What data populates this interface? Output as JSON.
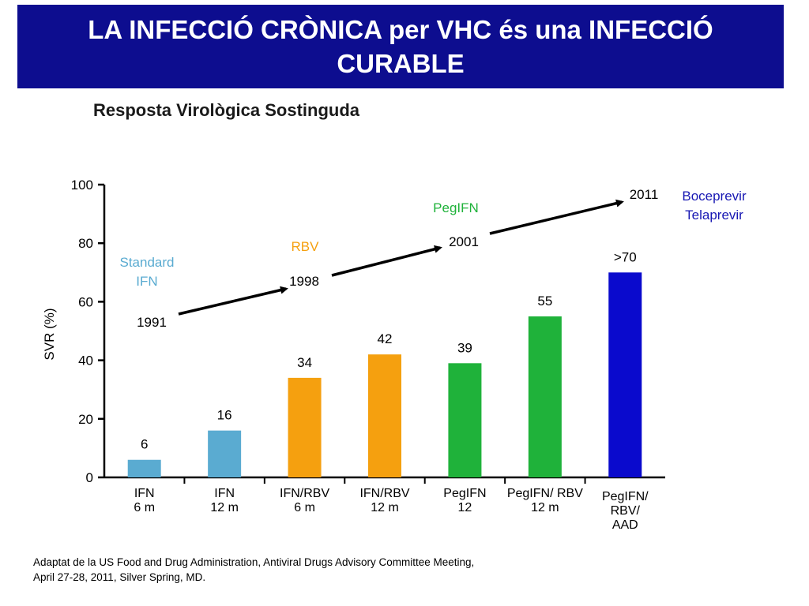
{
  "header": {
    "title": "LA INFECCIÓ CRÒNICA per VHC és una INFECCIÓ CURABLE"
  },
  "subtitle": "Resposta Virològica Sostinguda",
  "chart_data": {
    "type": "bar",
    "ylabel": "SVR (%)",
    "ylim": [
      0,
      100
    ],
    "yticks": [
      0,
      20,
      40,
      60,
      80,
      100
    ],
    "categories": [
      [
        "IFN",
        "6 m"
      ],
      [
        "IFN",
        "12 m"
      ],
      [
        "IFN/RBV",
        "6 m"
      ],
      [
        "IFN/RBV",
        "12 m"
      ],
      [
        "PegIFN",
        "12"
      ],
      [
        "PegIFN/ RBV",
        "12 m"
      ],
      [
        "PegIFN/",
        "RBV/",
        "AAD"
      ]
    ],
    "values": [
      6,
      16,
      34,
      42,
      39,
      55,
      70
    ],
    "data_labels": [
      "6",
      "16",
      "34",
      "42",
      "39",
      "55",
      ">70"
    ],
    "bar_colors": [
      "#5aabd1",
      "#5aabd1",
      "#f5a00f",
      "#f5a00f",
      "#1fb23a",
      "#1fb23a",
      "#0a0acd"
    ],
    "timeline": [
      {
        "year": "1991",
        "label": [
          "Standard",
          "IFN"
        ],
        "color": "#5aabd1"
      },
      {
        "year": "1998",
        "label": [
          "RBV"
        ],
        "color": "#f5a00f"
      },
      {
        "year": "2001",
        "label": [
          "PegIFN"
        ],
        "color": "#1fb23a"
      },
      {
        "year": "2011",
        "label": [
          "Boceprevir",
          "Telaprevir"
        ],
        "color": "#1717b3"
      }
    ],
    "grid": false,
    "legend": "none"
  },
  "footer": {
    "source_lines": [
      "Adaptat de la US Food and Drug Administration, Antiviral Drugs Advisory Committee Meeting,",
      "April 27-28, 2011, Silver Spring, MD."
    ]
  }
}
